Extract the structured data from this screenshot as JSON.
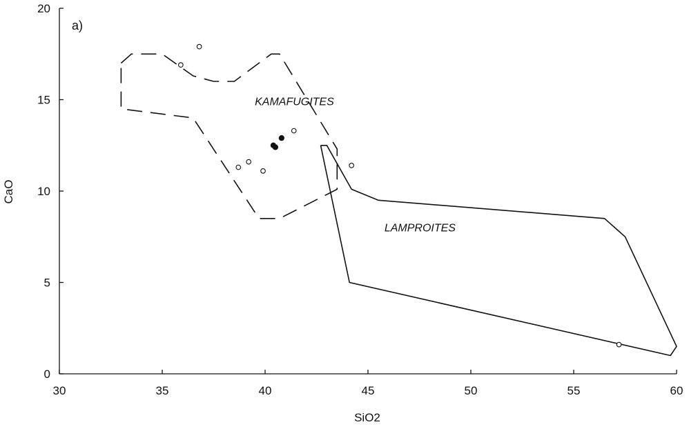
{
  "chart_data": {
    "type": "scatter",
    "panel_label": "a)",
    "xlabel": "SiO2",
    "ylabel": "CaO",
    "xlim": [
      30,
      60
    ],
    "ylim": [
      0,
      20
    ],
    "xticks": [
      30,
      35,
      40,
      45,
      50,
      55,
      60
    ],
    "yticks": [
      0,
      5,
      10,
      15,
      20
    ],
    "grid": false,
    "fields": [
      {
        "label": "KAMAFUGITES",
        "line_style": "dashed",
        "label_pos": [
          39.5,
          14.7
        ],
        "polygon": [
          [
            33,
            17
          ],
          [
            33.5,
            17.5
          ],
          [
            35,
            17.5
          ],
          [
            36.5,
            16.3
          ],
          [
            37.5,
            16
          ],
          [
            38.5,
            16
          ],
          [
            40.3,
            17.5
          ],
          [
            40.7,
            17.5
          ],
          [
            43.5,
            12.3
          ],
          [
            43.5,
            10.1
          ],
          [
            40.7,
            8.5
          ],
          [
            39.7,
            8.5
          ],
          [
            36.5,
            14
          ],
          [
            33,
            14.5
          ],
          [
            33,
            17
          ]
        ]
      },
      {
        "label": "LAMPROITES",
        "line_style": "solid",
        "label_pos": [
          45.8,
          7.8
        ],
        "polygon": [
          [
            42.7,
            12.5
          ],
          [
            43,
            12.5
          ],
          [
            44.2,
            10.1
          ],
          [
            45.5,
            9.5
          ],
          [
            56.5,
            8.5
          ],
          [
            57.5,
            7.5
          ],
          [
            60,
            1.5
          ],
          [
            59.7,
            1
          ],
          [
            44.1,
            5
          ],
          [
            42.7,
            12.5
          ]
        ]
      }
    ],
    "series": [
      {
        "marker": "open-circle",
        "points": [
          [
            35.9,
            16.9
          ],
          [
            36.8,
            17.9
          ],
          [
            38.7,
            11.3
          ],
          [
            39.2,
            11.6
          ],
          [
            39.9,
            11.1
          ],
          [
            41.4,
            13.3
          ],
          [
            44.2,
            11.4
          ],
          [
            57.2,
            1.6
          ]
        ]
      },
      {
        "marker": "filled-circle",
        "points": [
          [
            40.4,
            12.5
          ],
          [
            40.5,
            12.4
          ],
          [
            40.8,
            12.9
          ]
        ]
      }
    ]
  }
}
